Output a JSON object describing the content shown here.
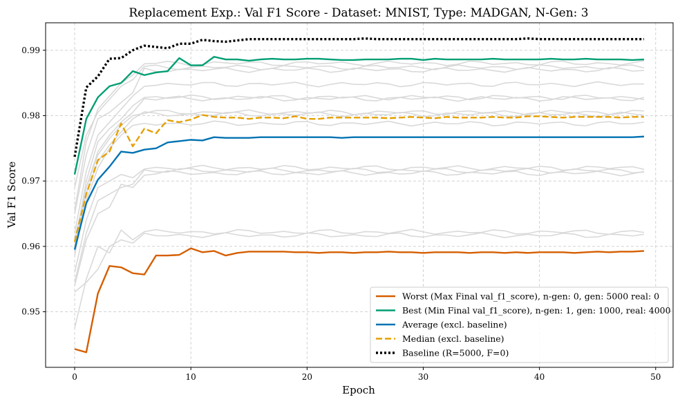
{
  "chart_data": {
    "type": "line",
    "title": "Replacement Exp.: Val F1 Score - Dataset: MNIST, Type: MADGAN, N-Gen: 3",
    "xlabel": "Epoch",
    "ylabel": "Val F1 Score",
    "xlim": [
      -2.5,
      51.5
    ],
    "ylim": [
      0.9415,
      0.9942
    ],
    "xticks": [
      0,
      10,
      20,
      30,
      40,
      50
    ],
    "yticks": [
      0.95,
      0.96,
      0.97,
      0.98,
      0.99
    ],
    "ytick_labels": [
      "0.95",
      "0.96",
      "0.97",
      "0.98",
      "0.99"
    ],
    "grid": true,
    "legend_position": "bottom-right",
    "series": [
      {
        "name": "Worst (Max Final val_f1_score), n-gen: 0, gen: 5000 real: 0",
        "color": "#D55E00",
        "style": "solid",
        "values": [
          0.9443,
          0.9438,
          0.9528,
          0.957,
          0.9568,
          0.9559,
          0.9557,
          0.9586,
          0.9586,
          0.9587,
          0.9597,
          0.9591,
          0.9593,
          0.9586,
          0.959,
          0.9592,
          0.9592,
          0.9592,
          0.9592,
          0.9591,
          0.9591,
          0.959,
          0.9591,
          0.9591,
          0.959,
          0.9591,
          0.9591,
          0.9592,
          0.9591,
          0.9591,
          0.959,
          0.9591,
          0.9591,
          0.9591,
          0.959,
          0.9591,
          0.9591,
          0.959,
          0.9591,
          0.959,
          0.9591,
          0.9591,
          0.9591,
          0.959,
          0.9591,
          0.9592,
          0.9591,
          0.9592,
          0.9592,
          0.9593
        ]
      },
      {
        "name": "Best (Min Final val_f1_score), n-gen: 1, gen: 1000, real: 4000",
        "color": "#009E73",
        "style": "solid",
        "values": [
          0.971,
          0.9795,
          0.9828,
          0.9845,
          0.985,
          0.9868,
          0.9862,
          0.9866,
          0.9868,
          0.9888,
          0.9877,
          0.9877,
          0.989,
          0.9886,
          0.9886,
          0.9884,
          0.9886,
          0.9887,
          0.9886,
          0.9886,
          0.9887,
          0.9887,
          0.9886,
          0.9885,
          0.9885,
          0.9886,
          0.9886,
          0.9886,
          0.9887,
          0.9887,
          0.9885,
          0.9887,
          0.9886,
          0.9886,
          0.9886,
          0.9886,
          0.9887,
          0.9886,
          0.9886,
          0.9886,
          0.9886,
          0.9887,
          0.9886,
          0.9886,
          0.9887,
          0.9886,
          0.9886,
          0.9886,
          0.9885,
          0.9886
        ]
      },
      {
        "name": "Average (excl. baseline)",
        "color": "#0072B2",
        "style": "solid",
        "values": [
          0.9595,
          0.9666,
          0.9702,
          0.9722,
          0.9745,
          0.9743,
          0.9748,
          0.975,
          0.9759,
          0.9761,
          0.9763,
          0.9762,
          0.9767,
          0.9766,
          0.9766,
          0.9766,
          0.9767,
          0.9767,
          0.9767,
          0.9767,
          0.9767,
          0.9767,
          0.9767,
          0.9766,
          0.9767,
          0.9767,
          0.9767,
          0.9767,
          0.9767,
          0.9767,
          0.9767,
          0.9767,
          0.9767,
          0.9767,
          0.9767,
          0.9767,
          0.9767,
          0.9767,
          0.9767,
          0.9767,
          0.9767,
          0.9767,
          0.9767,
          0.9767,
          0.9767,
          0.9767,
          0.9767,
          0.9767,
          0.9767,
          0.9768
        ]
      },
      {
        "name": "Median (excl. baseline)",
        "color": "#E69F00",
        "style": "dashed",
        "values": [
          0.9607,
          0.968,
          0.9732,
          0.9745,
          0.9788,
          0.9753,
          0.978,
          0.9773,
          0.9793,
          0.979,
          0.9794,
          0.9801,
          0.9798,
          0.9797,
          0.9797,
          0.9795,
          0.9797,
          0.9797,
          0.9796,
          0.9799,
          0.9795,
          0.9795,
          0.9797,
          0.9797,
          0.9797,
          0.9797,
          0.9797,
          0.9796,
          0.9797,
          0.9798,
          0.9797,
          0.9796,
          0.9798,
          0.9797,
          0.9797,
          0.9797,
          0.9798,
          0.9797,
          0.9797,
          0.9799,
          0.9799,
          0.9798,
          0.9797,
          0.9798,
          0.9798,
          0.9798,
          0.9798,
          0.9797,
          0.9798,
          0.9798
        ]
      },
      {
        "name": "Baseline (R=5000, F=0)",
        "color": "#000000",
        "style": "dotted",
        "values": [
          0.9737,
          0.9843,
          0.986,
          0.9887,
          0.9888,
          0.99,
          0.9907,
          0.9905,
          0.9903,
          0.991,
          0.991,
          0.9916,
          0.9914,
          0.9913,
          0.9915,
          0.9917,
          0.9917,
          0.9917,
          0.9917,
          0.9917,
          0.9917,
          0.9917,
          0.9917,
          0.9917,
          0.9917,
          0.9918,
          0.9917,
          0.9917,
          0.9917,
          0.9917,
          0.9917,
          0.9917,
          0.9917,
          0.9917,
          0.9917,
          0.9917,
          0.9917,
          0.9917,
          0.9917,
          0.9918,
          0.9917,
          0.9917,
          0.9917,
          0.9917,
          0.9917,
          0.9917,
          0.9917,
          0.9917,
          0.9917,
          0.9917
        ]
      }
    ],
    "background_runs": {
      "color": "#d9d9d9",
      "runs": [
        {
          "start": [
            0.9655,
            0.976,
            0.981,
            0.983,
            0.985,
            0.9862
          ],
          "level": 0.988
        },
        {
          "start": [
            0.969,
            0.977,
            0.9805,
            0.9825,
            0.9845,
            0.9855
          ],
          "level": 0.9874
        },
        {
          "start": [
            0.965,
            0.974,
            0.9795,
            0.9805,
            0.982,
            0.9835
          ],
          "level": 0.987
        },
        {
          "start": [
            0.962,
            0.9715,
            0.977,
            0.979,
            0.981,
            0.983
          ],
          "level": 0.9848
        },
        {
          "start": [
            0.96,
            0.97,
            0.976,
            0.978,
            0.9795,
            0.9815
          ],
          "level": 0.9828
        },
        {
          "start": [
            0.9585,
            0.969,
            0.9745,
            0.977,
            0.979,
            0.9805
          ],
          "level": 0.9826
        },
        {
          "start": [
            0.961,
            0.969,
            0.974,
            0.9765,
            0.9785,
            0.98
          ],
          "level": 0.9805
        },
        {
          "start": [
            0.96,
            0.968,
            0.973,
            0.9755,
            0.9775,
            0.9795
          ],
          "level": 0.9802
        },
        {
          "start": [
            0.959,
            0.967,
            0.972,
            0.975,
            0.977,
            0.9785
          ],
          "level": 0.9788
        },
        {
          "start": [
            0.956,
            0.964,
            0.969,
            0.97,
            0.971,
            0.9705
          ],
          "level": 0.972
        },
        {
          "start": [
            0.9545,
            0.962,
            0.967,
            0.968,
            0.969,
            0.9695
          ],
          "level": 0.9716
        },
        {
          "start": [
            0.954,
            0.961,
            0.965,
            0.966,
            0.9695,
            0.969
          ],
          "level": 0.9712
        },
        {
          "start": [
            0.9475,
            0.955,
            0.96,
            0.959,
            0.9625,
            0.961
          ],
          "level": 0.9622
        },
        {
          "start": [
            0.953,
            0.9545,
            0.9565,
            0.96,
            0.961,
            0.9605
          ],
          "level": 0.9617
        }
      ]
    }
  }
}
